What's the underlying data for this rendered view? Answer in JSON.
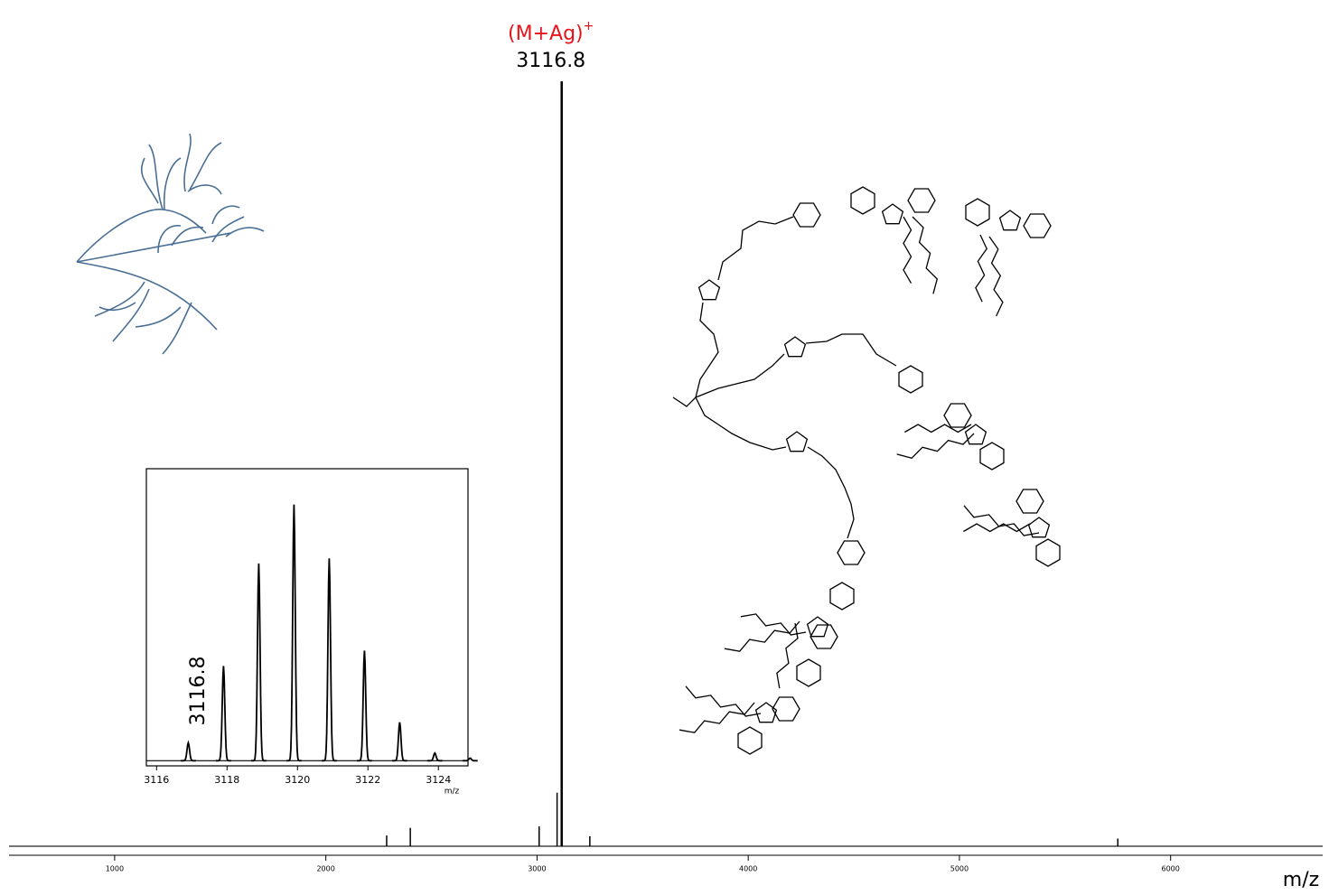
{
  "chart_data": [
    {
      "type": "stem",
      "xlim": [
        500,
        6720
      ],
      "xticks": [
        1000,
        2000,
        3000,
        4000,
        5000,
        6000
      ],
      "ylim": [
        0,
        100
      ],
      "x_label": "m/z",
      "x": [
        2288,
        2400,
        3010,
        3095,
        3116.8,
        3250,
        5750
      ],
      "values": [
        1.4,
        2.4,
        2.6,
        7,
        100,
        1.3,
        1
      ],
      "color": "#000000",
      "ion": "(M+Ag)",
      "ion_charge": "+",
      "ion_color": "#e8141b",
      "peak_label": "3116.8"
    },
    {
      "type": "profile",
      "xlim": [
        3115.71,
        3124.84
      ],
      "xticks": [
        3116,
        3118,
        3120,
        3122,
        3124
      ],
      "ylim": [
        -2,
        114
      ],
      "x_label": "m/z",
      "x": [
        3116.9,
        3117.9,
        3118.9,
        3119.9,
        3120.9,
        3121.9,
        3122.9,
        3123.9,
        3124.9
      ],
      "values": [
        7,
        37,
        77,
        100,
        79,
        43,
        15,
        3,
        1
      ],
      "color": "#000000",
      "peak_label": "3116.8"
    }
  ]
}
